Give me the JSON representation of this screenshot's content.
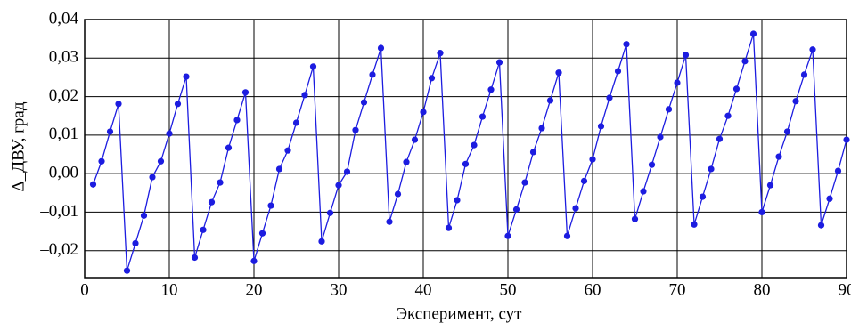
{
  "chart_data": {
    "type": "line",
    "x_label": "Эксперимент, сут",
    "y_label": "Δ_ДВУ, град",
    "x": [
      1,
      2,
      3,
      4,
      5,
      6,
      7,
      8,
      9,
      10,
      11,
      12,
      13,
      14,
      15,
      16,
      17,
      18,
      19,
      20,
      21,
      22,
      23,
      24,
      25,
      26,
      27,
      28,
      29,
      30,
      31,
      32,
      33,
      34,
      35,
      36,
      37,
      38,
      39,
      40,
      41,
      42,
      43,
      44,
      45,
      46,
      47,
      48,
      49,
      50,
      51,
      52,
      53,
      54,
      55,
      56,
      57,
      58,
      59,
      60,
      61,
      62,
      63,
      64,
      65,
      66,
      67,
      68,
      69,
      70,
      71,
      72,
      73,
      74,
      75,
      76,
      77,
      78,
      79,
      80,
      81,
      82,
      83,
      84,
      85,
      86,
      87,
      88,
      89,
      90
    ],
    "series": [
      {
        "name": "Δ_ДВУ",
        "color": "#1c1ce0",
        "values": [
          -0.0028,
          0.0032,
          0.0109,
          0.0181,
          -0.0252,
          -0.0181,
          -0.0109,
          -0.0009,
          0.0032,
          0.0104,
          0.0181,
          0.0252,
          -0.0218,
          -0.0146,
          -0.0074,
          -0.0023,
          0.0067,
          0.0139,
          0.0211,
          -0.0227,
          -0.0155,
          -0.0083,
          0.0012,
          0.006,
          0.0132,
          0.0204,
          0.0278,
          -0.0176,
          -0.0102,
          -0.003,
          0.0005,
          0.0113,
          0.0185,
          0.0257,
          0.0326,
          -0.0125,
          -0.0053,
          0.003,
          0.0088,
          0.016,
          0.0248,
          0.0313,
          -0.0141,
          -0.0069,
          0.0025,
          0.0074,
          0.0148,
          0.0218,
          0.0289,
          -0.0162,
          -0.0093,
          -0.0023,
          0.0056,
          0.0118,
          0.019,
          0.0262,
          -0.0162,
          -0.009,
          -0.0019,
          0.0037,
          0.0123,
          0.0197,
          0.0266,
          0.0336,
          -0.0118,
          -0.0046,
          0.0023,
          0.0095,
          0.0167,
          0.0236,
          0.0308,
          -0.0132,
          -0.006,
          0.0012,
          0.009,
          0.015,
          0.022,
          0.0292,
          0.0363,
          -0.01,
          -0.003,
          0.0044,
          0.0109,
          0.0188,
          0.0257,
          0.0322,
          -0.0134,
          -0.0065,
          0.0007,
          0.0088
        ]
      }
    ],
    "xlim": [
      0,
      90
    ],
    "ylim": [
      -0.027,
      0.04
    ],
    "xticks": [
      0,
      10,
      20,
      30,
      40,
      50,
      60,
      70,
      80,
      90
    ],
    "yticks": [
      {
        "value": -0.02,
        "label": "–0,02"
      },
      {
        "value": -0.01,
        "label": "–0,01"
      },
      {
        "value": 0,
        "label": "0,00"
      },
      {
        "value": 0.01,
        "label": "0,01"
      },
      {
        "value": 0.02,
        "label": "0,02"
      },
      {
        "value": 0.03,
        "label": "0,03"
      },
      {
        "value": 0.04,
        "label": "0,04"
      }
    ],
    "grid": true
  }
}
